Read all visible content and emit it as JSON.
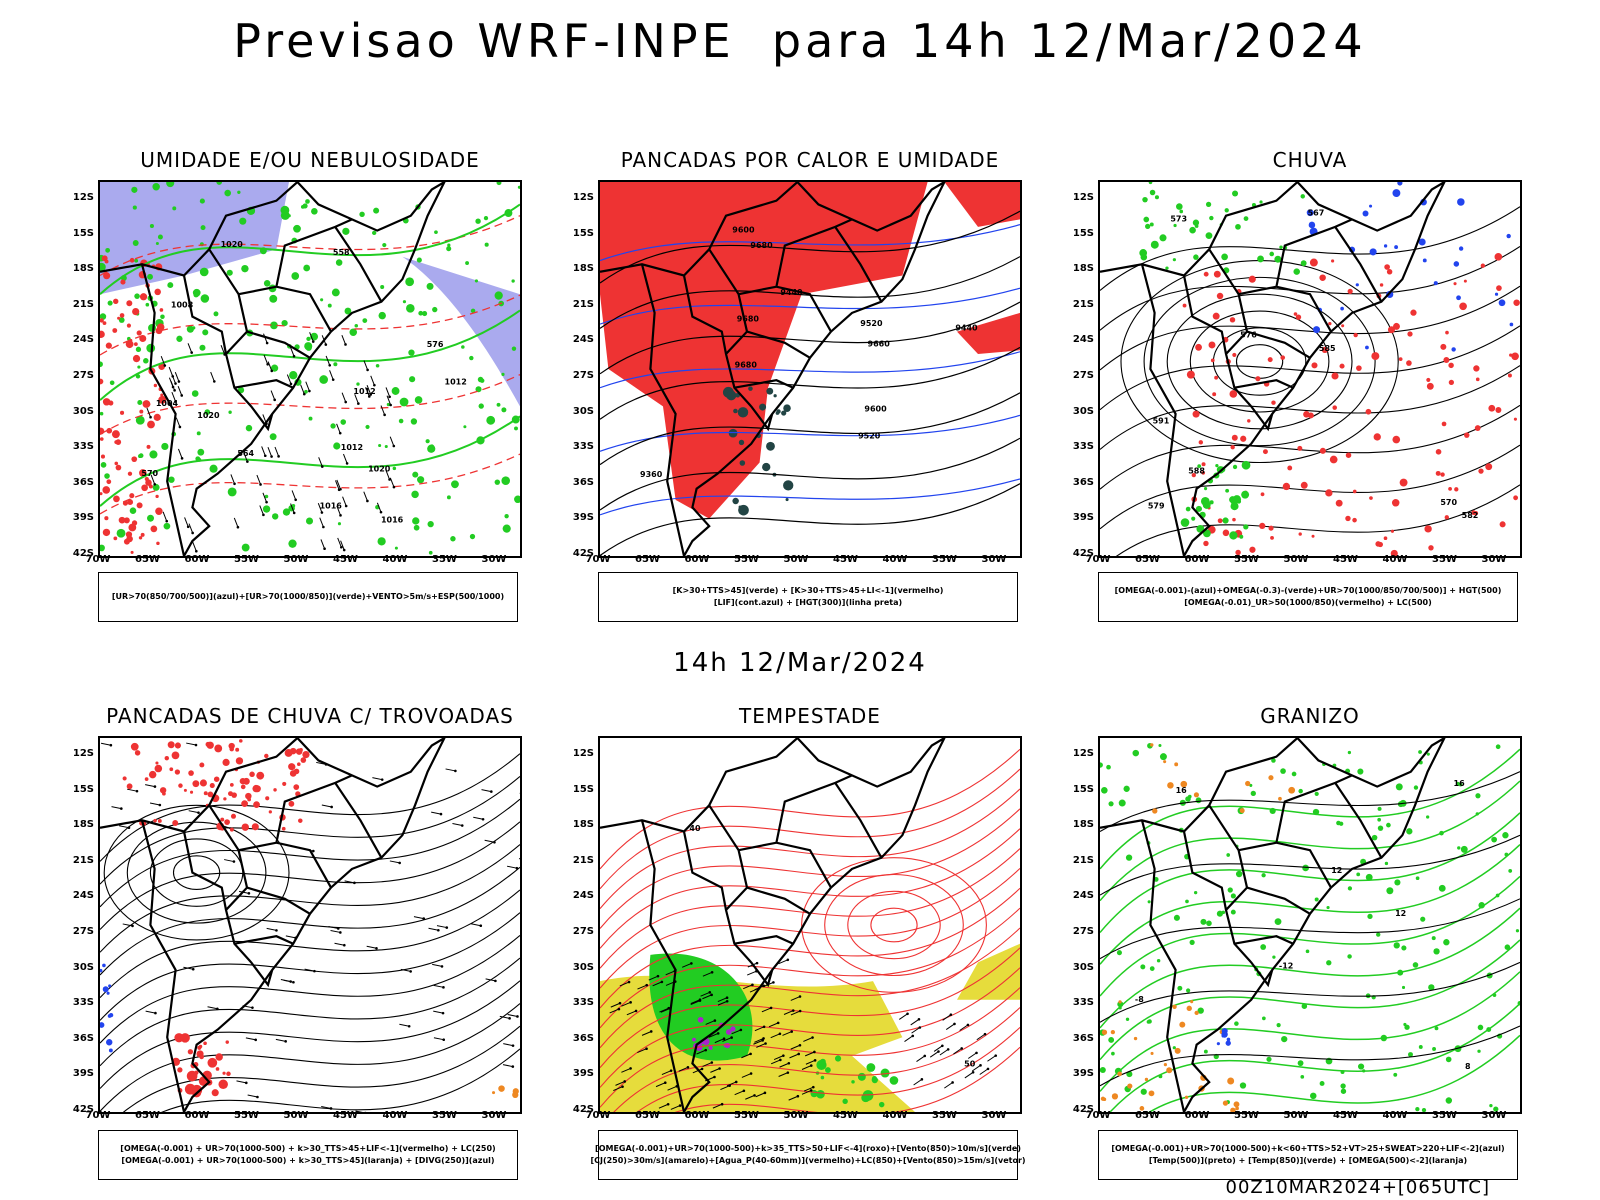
{
  "header": {
    "title": "Previsao WRF-INPE  para 14h 12/Mar/2024",
    "mid_date": "14h 12/Mar/2024",
    "run_info": "00Z10MAR2024+[065UTC]"
  },
  "axes": {
    "lat_labels": [
      "12S",
      "15S",
      "18S",
      "21S",
      "24S",
      "27S",
      "30S",
      "33S",
      "36S",
      "39S",
      "42S"
    ],
    "lon_labels": [
      "70W",
      "65W",
      "60W",
      "55W",
      "50W",
      "45W",
      "40W",
      "35W",
      "30W"
    ]
  },
  "colors": {
    "blue_fill": "#aaaaee",
    "green": "#22cc22",
    "red": "#ee3333",
    "black": "#000000",
    "blue_line": "#2244ee",
    "dark_teal": "#224444",
    "yellow": "#e6dc3c",
    "orange": "#ee8822",
    "purple": "#aa22cc"
  },
  "panels": [
    {
      "id": "umidade",
      "title": "UMIDADE E/OU NEBULOSIDADE",
      "legend": [
        "[UR>70(850/700/500)](azul)+[UR>70(1000/850)](verde)+VENTO>5m/s+ESP(500/1000)"
      ],
      "contour_labels": [
        "1012",
        "1012",
        "1012",
        "1016",
        "1016",
        "1020",
        "1020",
        "1020",
        "1008",
        "1004",
        "576",
        "570",
        "564",
        "558"
      ]
    },
    {
      "id": "pancadas-calor",
      "title": "PANCADAS POR CALOR E UMIDADE",
      "legend": [
        "[K>30+TTS>45](verde) + [K>30+TTS>45+LI<-1](vermelho)",
        "[LIF](cont.azul) + [HGT(300)](linha preta)"
      ],
      "contour_labels": [
        "9680",
        "9680",
        "9600",
        "9520",
        "9440",
        "9360",
        "9600",
        "9520",
        "9440",
        "9660",
        "9680"
      ]
    },
    {
      "id": "chuva",
      "title": "CHUVA",
      "legend": [
        "[OMEGA(-0.001)-(azul)+OMEGA(-0.3)-(verde)+UR>70(1000/850/700/500)] + HGT(500)",
        "[OMEGA(-0.01)_UR>50(1000/850)(vermelho) + LC(500)"
      ],
      "contour_labels": [
        "591",
        "588",
        "585",
        "582",
        "579",
        "576",
        "573",
        "570",
        "567"
      ]
    },
    {
      "id": "trovoadas",
      "title": "PANCADAS DE CHUVA C/ TROVOADAS",
      "legend": [
        "[OMEGA(-0.001) + UR>70(1000-500) + k>30_TTS>45+LIF<-1](vermelho) + LC(250)",
        "[OMEGA(-0.001) + UR>70(1000-500) + k>30_TTS>45](laranja) + [DIVG(250)](azul)"
      ],
      "contour_labels": []
    },
    {
      "id": "tempestade",
      "title": "TEMPESTADE",
      "legend": [
        "[OMEGA(-0.001)+UR>70(1000-500)+k>35_TTS>50+LIF<-4](roxo)+[Vento(850)>10m/s](verde)",
        "[CJ(250)>30m/s](amarelo)+[Agua_P(40-60mm)](vermelho)+LC(850)+[Vento(850)>15m/s](vetor)"
      ],
      "contour_labels": [
        "50",
        "40"
      ]
    },
    {
      "id": "granizo",
      "title": "GRANIZO",
      "legend": [
        "[OMEGA(-0.001)+UR>70(1000-500)+k<60+TTS>52+VT>25+SWEAT>220+LIF<-2](azul)",
        "[Temp(500)](preto) + [Temp(850)](verde) + [OMEGA(500)<-2](laranja)"
      ],
      "contour_labels": [
        "-12",
        "16",
        "16",
        "12",
        "8",
        "12",
        "-8"
      ]
    }
  ]
}
